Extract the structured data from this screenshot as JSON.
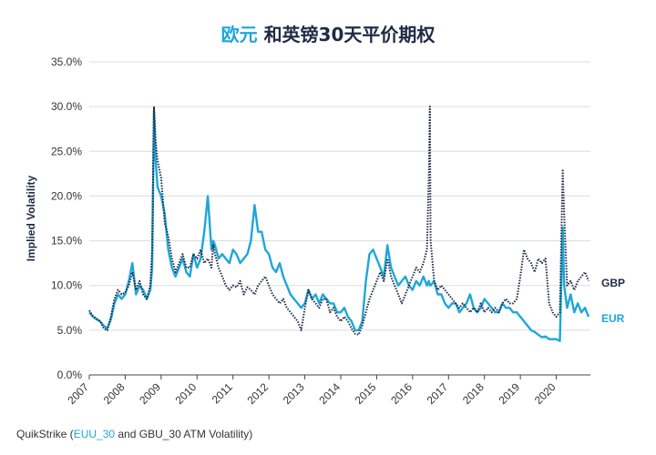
{
  "title": {
    "highlight": "欧元",
    "rest": "和英镑30天平价期权"
  },
  "source": {
    "prefix": "QuikStrike (",
    "highlight": "EUU_30",
    "suffix": " and GBU_30 ATM Volatility)"
  },
  "colors": {
    "eur": "#1ea7d9",
    "gbp": "#1f2a44",
    "grid": "#dcdcdc",
    "axis": "#444444"
  },
  "chart_data": {
    "type": "line",
    "title": "欧元 和英镑30天平价期权",
    "ylabel": "Implied Volatility",
    "xlabel": "",
    "ylim": [
      0,
      35
    ],
    "xlim": [
      2007.0,
      2020.95
    ],
    "yticks": [
      0,
      5,
      10,
      15,
      20,
      25,
      30,
      35
    ],
    "ytick_labels": [
      "0.0%",
      "5.0%",
      "10.0%",
      "15.0%",
      "20.0%",
      "25.0%",
      "30.0%",
      "35.0%"
    ],
    "xticks": [
      2007,
      2008,
      2009,
      2010,
      2011,
      2012,
      2013,
      2014,
      2015,
      2016,
      2017,
      2018,
      2019,
      2020
    ],
    "xtick_labels": [
      "2007",
      "2008",
      "2009",
      "2010",
      "2011",
      "2012",
      "2013",
      "2014",
      "2015",
      "2016",
      "2017",
      "2018",
      "2019",
      "2020"
    ],
    "grid": true,
    "legend": "right-end labels",
    "series": [
      {
        "name": "GBP",
        "style": "dotted",
        "x": [
          2007.0,
          2007.1,
          2007.2,
          2007.3,
          2007.4,
          2007.5,
          2007.6,
          2007.7,
          2007.8,
          2007.9,
          2008.0,
          2008.1,
          2008.2,
          2008.3,
          2008.4,
          2008.5,
          2008.6,
          2008.7,
          2008.75,
          2008.8,
          2008.85,
          2008.9,
          2009.0,
          2009.1,
          2009.2,
          2009.3,
          2009.4,
          2009.5,
          2009.6,
          2009.7,
          2009.8,
          2009.9,
          2010.0,
          2010.1,
          2010.2,
          2010.3,
          2010.4,
          2010.45,
          2010.5,
          2010.6,
          2010.7,
          2010.8,
          2010.9,
          2011.0,
          2011.1,
          2011.2,
          2011.3,
          2011.4,
          2011.5,
          2011.6,
          2011.7,
          2011.8,
          2011.9,
          2012.0,
          2012.1,
          2012.2,
          2012.3,
          2012.4,
          2012.5,
          2012.6,
          2012.7,
          2012.8,
          2012.9,
          2013.0,
          2013.1,
          2013.2,
          2013.3,
          2013.4,
          2013.5,
          2013.6,
          2013.7,
          2013.8,
          2013.9,
          2014.0,
          2014.1,
          2014.2,
          2014.3,
          2014.4,
          2014.5,
          2014.6,
          2014.7,
          2014.8,
          2014.9,
          2015.0,
          2015.1,
          2015.2,
          2015.3,
          2015.4,
          2015.5,
          2015.6,
          2015.7,
          2015.8,
          2015.9,
          2016.0,
          2016.1,
          2016.2,
          2016.3,
          2016.4,
          2016.45,
          2016.48,
          2016.5,
          2016.6,
          2016.7,
          2016.8,
          2016.9,
          2017.0,
          2017.1,
          2017.2,
          2017.3,
          2017.4,
          2017.5,
          2017.6,
          2017.7,
          2017.8,
          2017.9,
          2018.0,
          2018.1,
          2018.2,
          2018.3,
          2018.4,
          2018.5,
          2018.6,
          2018.7,
          2018.8,
          2018.9,
          2019.0,
          2019.1,
          2019.2,
          2019.3,
          2019.4,
          2019.5,
          2019.6,
          2019.7,
          2019.8,
          2019.9,
          2020.0,
          2020.1,
          2020.18,
          2020.22,
          2020.3,
          2020.4,
          2020.5,
          2020.6,
          2020.7,
          2020.8,
          2020.9
        ],
        "values": [
          7.2,
          6.6,
          6.3,
          6.0,
          5.2,
          5.0,
          6.5,
          8.5,
          9.5,
          9.0,
          9.2,
          10.0,
          11.5,
          9.5,
          10.5,
          9.0,
          8.5,
          10.0,
          14.0,
          30.0,
          26.0,
          24.0,
          22.0,
          17.0,
          15.5,
          13.0,
          11.5,
          12.5,
          13.5,
          12.0,
          12.0,
          13.5,
          13.0,
          14.0,
          12.5,
          13.0,
          12.0,
          14.5,
          13.5,
          12.0,
          11.0,
          10.0,
          9.5,
          10.0,
          9.8,
          10.5,
          9.0,
          9.8,
          9.5,
          9.0,
          10.0,
          10.5,
          11.0,
          10.0,
          9.0,
          8.5,
          8.0,
          8.5,
          7.5,
          7.0,
          6.5,
          6.0,
          5.0,
          7.5,
          9.5,
          8.5,
          8.0,
          7.5,
          8.5,
          8.5,
          7.0,
          7.5,
          6.5,
          6.0,
          6.5,
          6.0,
          5.2,
          4.6,
          4.5,
          5.5,
          7.0,
          8.5,
          9.5,
          10.5,
          11.5,
          10.5,
          13.0,
          11.0,
          10.0,
          9.0,
          8.0,
          9.0,
          10.0,
          11.0,
          12.0,
          11.5,
          12.5,
          14.0,
          22.0,
          30.0,
          15.0,
          10.5,
          9.5,
          10.0,
          9.5,
          9.0,
          8.5,
          8.0,
          7.5,
          8.0,
          7.5,
          7.0,
          7.5,
          7.0,
          8.0,
          7.0,
          7.5,
          7.0,
          7.5,
          7.0,
          8.0,
          8.5,
          8.0,
          8.0,
          8.5,
          11.0,
          14.0,
          13.0,
          12.5,
          11.5,
          13.0,
          12.5,
          13.0,
          8.0,
          7.0,
          6.5,
          7.0,
          23.0,
          18.0,
          10.0,
          10.5,
          9.5,
          10.5,
          11.0,
          11.5,
          10.5
        ]
      },
      {
        "name": "EUR",
        "style": "solid",
        "x": [
          2007.0,
          2007.1,
          2007.2,
          2007.3,
          2007.4,
          2007.5,
          2007.6,
          2007.7,
          2007.8,
          2007.9,
          2008.0,
          2008.1,
          2008.2,
          2008.3,
          2008.4,
          2008.5,
          2008.6,
          2008.7,
          2008.75,
          2008.8,
          2008.85,
          2008.9,
          2009.0,
          2009.1,
          2009.2,
          2009.3,
          2009.4,
          2009.5,
          2009.6,
          2009.7,
          2009.8,
          2009.9,
          2010.0,
          2010.1,
          2010.2,
          2010.3,
          2010.4,
          2010.45,
          2010.5,
          2010.6,
          2010.7,
          2010.8,
          2010.9,
          2011.0,
          2011.1,
          2011.2,
          2011.3,
          2011.4,
          2011.5,
          2011.6,
          2011.7,
          2011.8,
          2011.9,
          2012.0,
          2012.1,
          2012.2,
          2012.3,
          2012.4,
          2012.5,
          2012.6,
          2012.7,
          2012.8,
          2012.9,
          2013.0,
          2013.1,
          2013.2,
          2013.3,
          2013.4,
          2013.5,
          2013.6,
          2013.7,
          2013.8,
          2013.9,
          2014.0,
          2014.1,
          2014.2,
          2014.3,
          2014.4,
          2014.5,
          2014.6,
          2014.7,
          2014.8,
          2014.9,
          2015.0,
          2015.1,
          2015.2,
          2015.3,
          2015.4,
          2015.5,
          2015.6,
          2015.7,
          2015.8,
          2015.9,
          2016.0,
          2016.1,
          2016.2,
          2016.3,
          2016.4,
          2016.45,
          2016.48,
          2016.5,
          2016.6,
          2016.7,
          2016.8,
          2016.9,
          2017.0,
          2017.1,
          2017.2,
          2017.3,
          2017.4,
          2017.5,
          2017.6,
          2017.7,
          2017.8,
          2017.9,
          2018.0,
          2018.1,
          2018.2,
          2018.3,
          2018.4,
          2018.5,
          2018.6,
          2018.7,
          2018.8,
          2018.9,
          2019.0,
          2019.1,
          2019.2,
          2019.3,
          2019.4,
          2019.5,
          2019.6,
          2019.7,
          2019.8,
          2019.9,
          2020.0,
          2020.1,
          2020.18,
          2020.22,
          2020.3,
          2020.4,
          2020.5,
          2020.6,
          2020.7,
          2020.8,
          2020.9
        ],
        "values": [
          7.0,
          6.5,
          6.2,
          6.0,
          5.5,
          5.2,
          6.2,
          8.0,
          9.0,
          8.5,
          9.0,
          10.5,
          12.5,
          9.0,
          10.0,
          9.5,
          8.5,
          9.5,
          12.0,
          29.5,
          24.0,
          21.0,
          20.0,
          18.0,
          14.0,
          12.0,
          11.0,
          12.0,
          13.0,
          11.5,
          11.0,
          13.5,
          12.0,
          13.0,
          16.0,
          20.0,
          14.0,
          15.0,
          14.5,
          13.0,
          13.5,
          13.0,
          12.5,
          14.0,
          13.5,
          12.5,
          13.0,
          13.5,
          15.0,
          19.0,
          16.0,
          16.0,
          14.0,
          13.5,
          12.0,
          11.5,
          12.5,
          11.0,
          10.0,
          9.0,
          8.5,
          8.0,
          7.5,
          8.0,
          9.5,
          8.5,
          9.0,
          8.0,
          9.0,
          8.5,
          8.0,
          8.0,
          7.0,
          7.0,
          7.5,
          6.5,
          6.0,
          5.0,
          5.0,
          6.0,
          10.5,
          13.5,
          14.0,
          13.0,
          12.0,
          11.0,
          14.5,
          12.0,
          11.0,
          10.0,
          10.5,
          11.0,
          10.0,
          9.5,
          10.5,
          10.0,
          11.0,
          10.0,
          10.5,
          10.0,
          10.0,
          10.5,
          9.0,
          9.0,
          8.0,
          7.5,
          8.0,
          8.0,
          7.0,
          7.5,
          8.0,
          9.0,
          7.5,
          7.0,
          7.5,
          8.5,
          8.0,
          7.5,
          7.0,
          7.0,
          8.0,
          7.5,
          7.5,
          7.0,
          7.0,
          6.5,
          6.0,
          5.5,
          5.0,
          4.8,
          4.5,
          4.2,
          4.3,
          4.0,
          4.0,
          4.0,
          3.8,
          16.5,
          10.0,
          7.5,
          9.0,
          7.0,
          8.0,
          7.0,
          7.5,
          6.5
        ]
      }
    ],
    "end_labels": [
      "GBP",
      "EUR"
    ]
  }
}
